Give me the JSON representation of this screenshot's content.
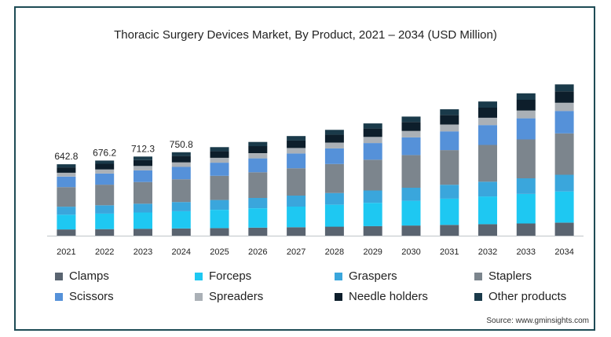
{
  "chart_data": {
    "type": "bar",
    "stacked": true,
    "title": "Thoracic Surgery Devices Market, By Product, 2021 – 2034 (USD Million)",
    "xlabel": "",
    "ylabel": "",
    "categories": [
      "2021",
      "2022",
      "2023",
      "2024",
      "2025",
      "2026",
      "2027",
      "2028",
      "2029",
      "2030",
      "2031",
      "2032",
      "2033",
      "2034"
    ],
    "data_labels": [
      "642.8",
      "676.2",
      "712.3",
      "750.8",
      "",
      "",
      "",
      "",
      "",
      "",
      "",
      "",
      "",
      ""
    ],
    "series": [
      {
        "name": "Clamps",
        "color": "#5a6470",
        "values": [
          56,
          59,
          62,
          65,
          68,
          72,
          76,
          81,
          86,
          91,
          97,
          103,
          110,
          117
        ]
      },
      {
        "name": "Forceps",
        "color": "#1ec8f2",
        "values": [
          133,
          140,
          147,
          155,
          165,
          175,
          186,
          198,
          210,
          223,
          236,
          250,
          265,
          281
        ]
      },
      {
        "name": "Graspers",
        "color": "#3aa6dc",
        "values": [
          72,
          75,
          79,
          83,
          88,
          93,
          99,
          105,
          111,
          118,
          125,
          133,
          141,
          150
        ]
      },
      {
        "name": "Staplers",
        "color": "#7c858d",
        "values": [
          176,
          185,
          195,
          205,
          218,
          231,
          246,
          261,
          277,
          294,
          312,
          331,
          351,
          373
        ]
      },
      {
        "name": "Scissors",
        "color": "#5591d9",
        "values": [
          95,
          100,
          105,
          111,
          118,
          125,
          133,
          141,
          150,
          159,
          169,
          179,
          190,
          202
        ]
      },
      {
        "name": "Spreaders",
        "color": "#aab0b6",
        "values": [
          35,
          37,
          39,
          41,
          44,
          46,
          49,
          52,
          55,
          58,
          62,
          66,
          70,
          74
        ]
      },
      {
        "name": "Needle holders",
        "color": "#0d1e2b",
        "values": [
          48,
          51,
          54,
          57,
          60,
          64,
          68,
          72,
          76,
          81,
          86,
          91,
          97,
          103
        ]
      },
      {
        "name": "Other products",
        "color": "#1a3a4a",
        "values": [
          28,
          29,
          31,
          34,
          36,
          38,
          40,
          43,
          46,
          48,
          51,
          55,
          58,
          62
        ]
      }
    ],
    "ylim": [
      0,
      1450
    ],
    "grid": false,
    "legend_position": "bottom"
  },
  "source": "Source: www.gminsights.com"
}
